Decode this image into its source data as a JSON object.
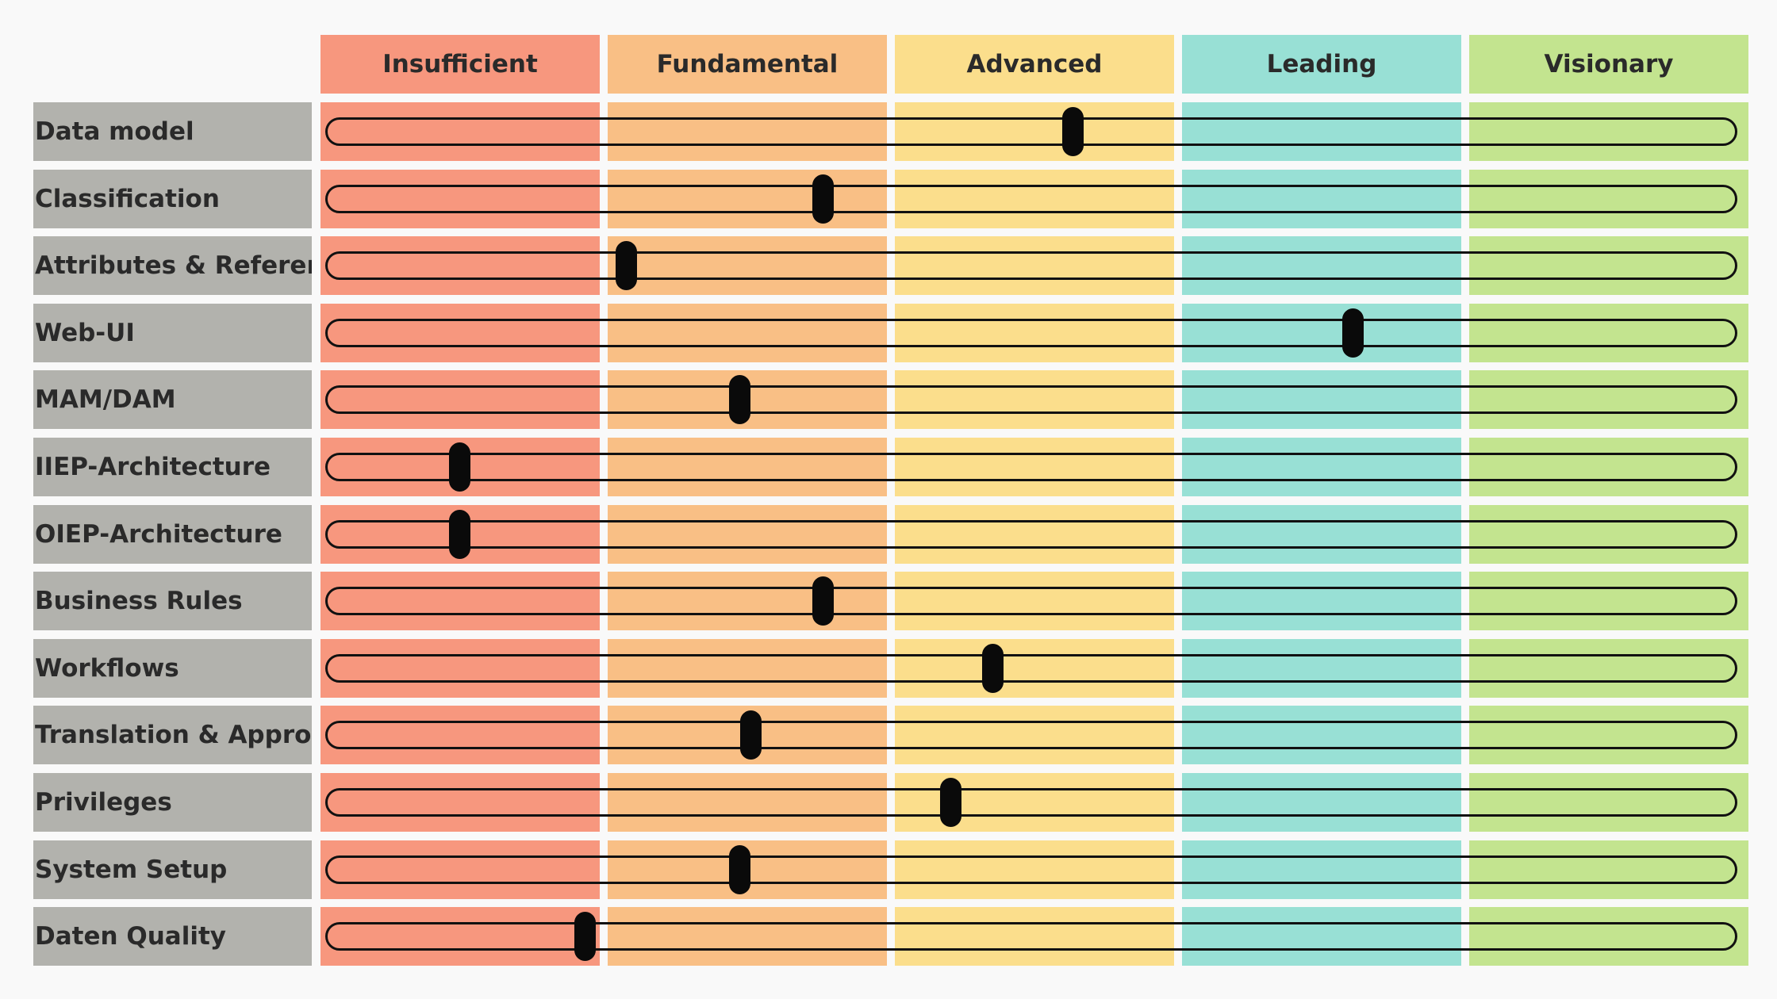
{
  "chart_data": {
    "type": "table",
    "title": "",
    "levels": [
      {
        "name": "Insufficient",
        "color": "#f7977e"
      },
      {
        "name": "Fundamental",
        "color": "#f9bf85"
      },
      {
        "name": "Advanced",
        "color": "#fbde8c"
      },
      {
        "name": "Leading",
        "color": "#98e0d5"
      },
      {
        "name": "Visionary",
        "color": "#c3e48f"
      }
    ],
    "scale": [
      0,
      5
    ],
    "label_background": "#b2b2ad",
    "categories": [
      "Data model",
      "Classification",
      "Attributes & References",
      "Web-UI",
      "MAM/DAM",
      "IIEP-Architecture",
      "OIEP-Architecture",
      "Business Rules",
      "Workflows",
      "Translation & Approve",
      "Privileges",
      "System Setup",
      "Daten Quality"
    ],
    "values": [
      2.65,
      1.75,
      1.04,
      3.66,
      1.45,
      0.44,
      0.44,
      1.75,
      2.36,
      1.49,
      2.21,
      1.45,
      0.89
    ]
  }
}
